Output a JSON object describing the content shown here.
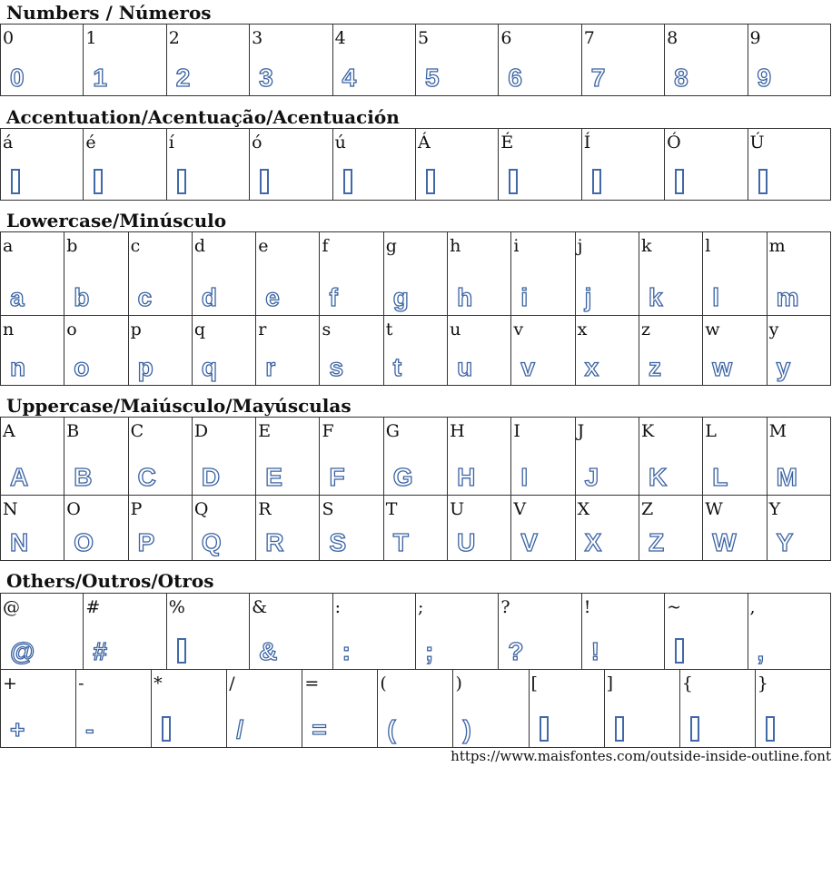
{
  "sections": [
    {
      "title": "Numbers / Números",
      "rows": [
        [
          "0",
          "1",
          "2",
          "3",
          "4",
          "5",
          "6",
          "7",
          "8",
          "9"
        ]
      ],
      "missing": []
    },
    {
      "title": "Accentuation/Acentuação/Acentuación",
      "rows": [
        [
          "á",
          "é",
          "í",
          "ó",
          "ú",
          "Á",
          "É",
          "Í",
          "Ó",
          "Ú"
        ]
      ],
      "missing": [
        "á",
        "é",
        "í",
        "ó",
        "ú",
        "Á",
        "É",
        "Í",
        "Ó",
        "Ú"
      ]
    },
    {
      "title": "Lowercase/Minúsculo",
      "rows": [
        [
          "a",
          "b",
          "c",
          "d",
          "e",
          "f",
          "g",
          "h",
          "i",
          "j",
          "k",
          "l",
          "m"
        ],
        [
          "n",
          "o",
          "p",
          "q",
          "r",
          "s",
          "t",
          "u",
          "v",
          "x",
          "z",
          "w",
          "y"
        ]
      ],
      "missing": []
    },
    {
      "title": "Uppercase/Maiúsculo/Mayúsculas",
      "rows": [
        [
          "A",
          "B",
          "C",
          "D",
          "E",
          "F",
          "G",
          "H",
          "I",
          "J",
          "K",
          "L",
          "M"
        ],
        [
          "N",
          "O",
          "P",
          "Q",
          "R",
          "S",
          "T",
          "U",
          "V",
          "X",
          "Z",
          "W",
          "Y"
        ]
      ],
      "missing": []
    },
    {
      "title": "Others/Outros/Otros",
      "rows": [
        [
          "@",
          "#",
          "%",
          "&",
          ":",
          ";",
          "?",
          "!",
          "~",
          ","
        ],
        [
          "+",
          "-",
          "*",
          "/",
          "=",
          "(",
          ")",
          "[",
          "]",
          "{",
          "}"
        ]
      ],
      "missing": [
        "%",
        "~",
        "*",
        "[",
        "]",
        "{",
        "}"
      ]
    }
  ],
  "footer": "https://www.maisfontes.com/outside-inside-outline.font",
  "colors": {
    "glyph_outline": "#3a63a3"
  }
}
